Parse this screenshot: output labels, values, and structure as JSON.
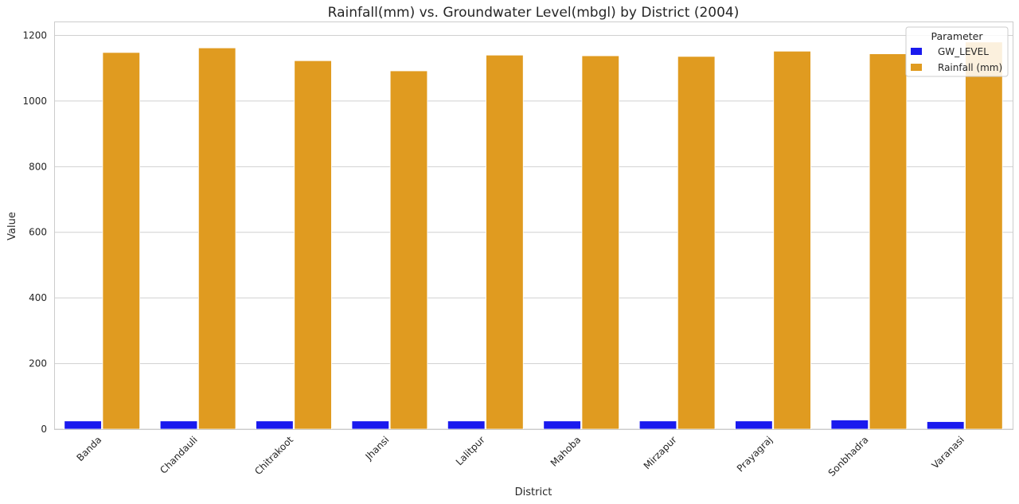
{
  "chart_data": {
    "type": "bar",
    "title": "Rainfall(mm) vs. Groundwater Level(mbgl) by District (2004)",
    "xlabel": "District",
    "ylabel": "Value",
    "ylim": [
      0,
      1240
    ],
    "yticks": [
      0,
      200,
      400,
      600,
      800,
      1000,
      1200
    ],
    "grid": true,
    "legend": {
      "title": "Parameter",
      "placement": "top-right"
    },
    "categories": [
      "Banda",
      "Chandauli",
      "Chitrakoot",
      "Jhansi",
      "Lalitpur",
      "Mahoba",
      "Mirzapur",
      "Prayagraj",
      "Sonbhadra",
      "Varanasi"
    ],
    "series": [
      {
        "name": "GW_LEVEL",
        "color": "#1a1aee",
        "values": [
          25,
          25,
          25,
          25,
          25,
          25,
          25,
          25,
          28,
          23
        ]
      },
      {
        "name": "Rainfall (mm)",
        "color": "#e09b20",
        "values": [
          1148,
          1162,
          1123,
          1092,
          1140,
          1138,
          1136,
          1152,
          1144,
          1180
        ]
      }
    ]
  }
}
